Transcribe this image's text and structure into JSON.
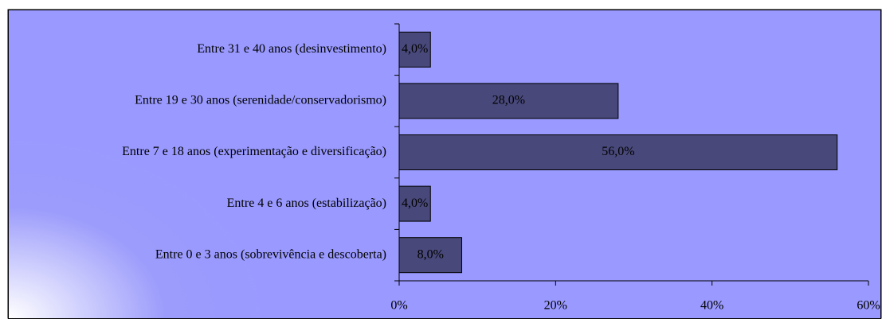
{
  "chart_data": {
    "type": "bar",
    "orientation": "horizontal",
    "categories": [
      "Entre 31 e 40 anos (desinvestimento)",
      "Entre 19 e 30 anos (serenidade/conservadorismo)",
      "Entre 7 e 18 anos (experimentação e diversificação)",
      "Entre 4 e 6 anos (estabilização)",
      "Entre 0 e 3 anos (sobrevivência e descoberta)"
    ],
    "values": [
      4,
      28,
      56,
      4,
      8
    ],
    "value_labels": [
      "4,0%",
      "28,0%",
      "56,0%",
      "4,0%",
      "8,0%"
    ],
    "color": "#48487a",
    "xlim": [
      0,
      60
    ],
    "xticks": [
      {
        "value": 0,
        "label": "0%"
      },
      {
        "value": 20,
        "label": "20%"
      },
      {
        "value": 40,
        "label": "40%"
      },
      {
        "value": 60,
        "label": "60%"
      }
    ]
  }
}
